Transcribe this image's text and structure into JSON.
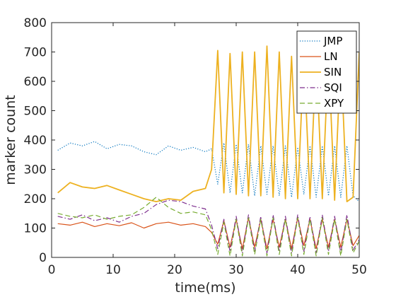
{
  "chart_data": {
    "type": "line",
    "title": "",
    "xlabel": "time(ms)",
    "ylabel": "marker count",
    "xlim": [
      0,
      50
    ],
    "ylim": [
      0,
      800
    ],
    "xticks": [
      0,
      10,
      20,
      30,
      40,
      50
    ],
    "yticks": [
      0,
      100,
      200,
      300,
      400,
      500,
      600,
      700,
      800
    ],
    "grid": false,
    "legend_position": "top-right",
    "x": [
      1,
      3,
      5,
      7,
      9,
      11,
      13,
      15,
      17,
      19,
      21,
      23,
      25,
      26,
      27,
      28,
      29,
      30,
      31,
      32,
      33,
      34,
      35,
      36,
      37,
      38,
      39,
      40,
      41,
      42,
      43,
      44,
      45,
      46,
      47,
      48,
      49,
      50
    ],
    "series": [
      {
        "name": "JMP",
        "style": "dotted",
        "color": "#0072BD",
        "values": [
          365,
          390,
          380,
          395,
          370,
          385,
          380,
          360,
          350,
          380,
          365,
          375,
          360,
          370,
          250,
          390,
          220,
          385,
          220,
          385,
          210,
          380,
          215,
          380,
          210,
          380,
          205,
          375,
          215,
          380,
          205,
          380,
          210,
          380,
          205,
          380,
          210,
          190
        ]
      },
      {
        "name": "LN",
        "style": "solid",
        "color": "#D95319",
        "values": [
          115,
          110,
          120,
          105,
          115,
          108,
          118,
          100,
          115,
          120,
          110,
          115,
          105,
          85,
          45,
          125,
          35,
          130,
          30,
          135,
          35,
          130,
          30,
          130,
          35,
          130,
          30,
          135,
          40,
          130,
          30,
          130,
          35,
          130,
          35,
          130,
          40,
          75
        ]
      },
      {
        "name": "SIN",
        "style": "solid",
        "color": "#EDB120",
        "values": [
          220,
          255,
          240,
          235,
          245,
          230,
          215,
          200,
          190,
          200,
          195,
          225,
          235,
          300,
          705,
          220,
          695,
          215,
          700,
          210,
          700,
          210,
          720,
          205,
          700,
          200,
          685,
          200,
          690,
          200,
          690,
          200,
          695,
          195,
          690,
          190,
          205,
          700
        ]
      },
      {
        "name": "SQI",
        "style": "dashdot",
        "color": "#7E2F8E",
        "values": [
          140,
          130,
          145,
          125,
          135,
          120,
          140,
          150,
          180,
          195,
          190,
          175,
          165,
          110,
          30,
          130,
          20,
          140,
          15,
          145,
          20,
          140,
          15,
          145,
          20,
          140,
          15,
          145,
          20,
          140,
          15,
          145,
          20,
          140,
          15,
          145,
          25,
          60
        ]
      },
      {
        "name": "XPY",
        "style": "dashed",
        "color": "#77AC30",
        "values": [
          150,
          140,
          135,
          145,
          130,
          140,
          145,
          170,
          205,
          170,
          150,
          155,
          145,
          95,
          10,
          120,
          5,
          130,
          5,
          135,
          10,
          130,
          5,
          135,
          10,
          130,
          5,
          135,
          10,
          130,
          5,
          135,
          10,
          130,
          5,
          130,
          15,
          55
        ]
      }
    ]
  }
}
